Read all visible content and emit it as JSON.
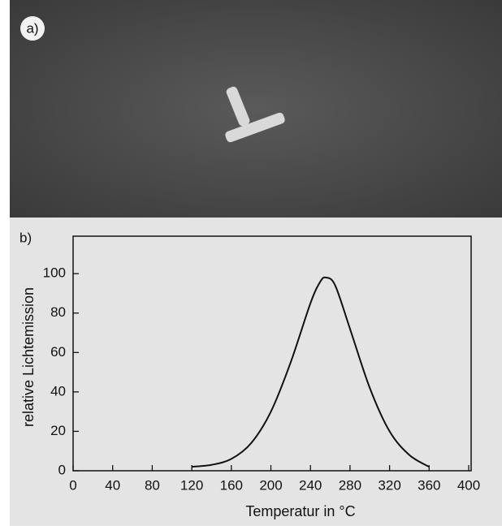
{
  "panel_a": {
    "label": "a)"
  },
  "chart_data": {
    "type": "line",
    "label": "b)",
    "x_label": "Temperatur in °C",
    "y_label": "relative Lichtemission",
    "x": [
      120,
      140,
      160,
      180,
      200,
      220,
      240,
      250,
      256,
      265,
      280,
      300,
      320,
      340,
      360
    ],
    "series": [
      {
        "name": "relative Lichtemission",
        "color": "#111111",
        "values": [
          2,
          3,
          6,
          14,
          30,
          55,
          85,
          96,
          98,
          94,
          72,
          42,
          20,
          8,
          2
        ]
      }
    ],
    "xlim": [
      0,
      400
    ],
    "xticks": [
      0,
      40,
      80,
      120,
      160,
      200,
      240,
      280,
      320,
      360,
      400
    ],
    "ylim": [
      0,
      119
    ],
    "yticks": [
      0,
      20,
      40,
      60,
      80,
      100
    ],
    "grid": false
  }
}
